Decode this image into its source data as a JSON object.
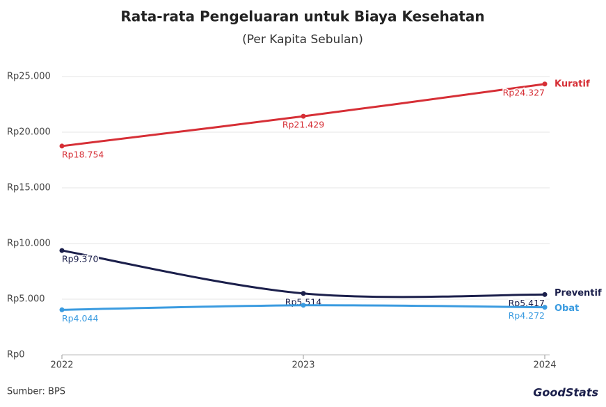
{
  "chart_data": {
    "type": "line",
    "title": "Rata-rata Pengeluaran untuk Biaya Kesehatan",
    "subtitle": "(Per Kapita Sebulan)",
    "categories": [
      "2022",
      "2023",
      "2024"
    ],
    "series": [
      {
        "name": "Kuratif",
        "color": "#d62f36",
        "values": [
          18754,
          21429,
          24327
        ],
        "value_labels": [
          "Rp18.754",
          "Rp21.429",
          "Rp24.327"
        ]
      },
      {
        "name": "Preventif",
        "color": "#1b1f4b",
        "values": [
          9370,
          5514,
          5417
        ],
        "value_labels": [
          "Rp9.370",
          "Rp5.514",
          "Rp5.417"
        ]
      },
      {
        "name": "Obat",
        "color": "#3a9be0",
        "values": [
          4044,
          4450,
          4272
        ],
        "value_labels": [
          "Rp4.044",
          null,
          "Rp4.272"
        ]
      }
    ],
    "ylim": [
      0,
      25000
    ],
    "yticks": [
      {
        "value": 0,
        "label": "Rp0"
      },
      {
        "value": 5000,
        "label": "Rp5.000"
      },
      {
        "value": 10000,
        "label": "Rp10.000"
      },
      {
        "value": 15000,
        "label": "Rp15.000"
      },
      {
        "value": 20000,
        "label": "Rp20.000"
      },
      {
        "value": 25000,
        "label": "Rp25.000"
      }
    ],
    "grid": true,
    "source": "Sumber: BPS",
    "logo": "GoodStats"
  }
}
